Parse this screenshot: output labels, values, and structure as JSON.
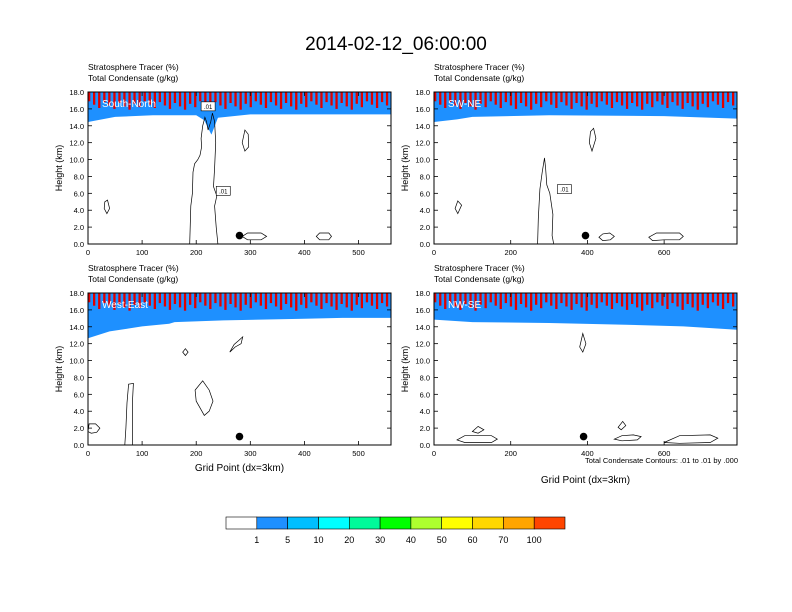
{
  "figure": {
    "title": "2014-02-12_06:00:00",
    "condensate_note": "Total Condensate Contours: .01 to .01 by .000"
  },
  "colors": {
    "tracer_fill": [
      "#ffffff",
      "#1e90ff",
      "#00bfff",
      "#00ffff",
      "#00fa9a",
      "#00ff00",
      "#adff2f",
      "#ffff00",
      "#ffd700",
      "#ffa500",
      "#ff4500",
      "#ff0000"
    ],
    "stripe_dark": "#e00000",
    "contour": "#000000"
  },
  "colorbar": {
    "labels": [
      "1",
      "5",
      "10",
      "20",
      "30",
      "40",
      "50",
      "60",
      "70",
      "100"
    ]
  },
  "chart_data": [
    {
      "type": "contour",
      "panel": "South-North",
      "line1": "Stratosphere Tracer   (%)",
      "line2": "Total Condensate   (g/kg)",
      "ylabel": "Height (km)",
      "xlabel": "",
      "xlim": [
        0,
        560
      ],
      "ylim": [
        0,
        18
      ],
      "xticks": [
        "0",
        "100",
        "200",
        "300",
        "400",
        "500"
      ],
      "xtick_values": [
        0,
        100,
        200,
        300,
        400,
        500
      ],
      "yticks": [
        "0.0",
        "2.0",
        "4.0",
        "6.0",
        "8.0",
        "10.0",
        "12.0",
        "14.0",
        "16.0",
        "18.0"
      ],
      "tracer_top_km": [
        [
          0,
          15.0
        ],
        [
          50,
          15.6
        ],
        [
          120,
          15.8
        ],
        [
          200,
          15.8
        ],
        [
          215,
          15.2
        ],
        [
          228,
          13.5
        ],
        [
          240,
          15.5
        ],
        [
          300,
          15.9
        ],
        [
          420,
          15.9
        ],
        [
          560,
          15.9
        ]
      ],
      "marker": {
        "x": 280,
        "y_km": 1.0
      },
      "contour_labels": [
        {
          "text": ".01",
          "x": 222,
          "y_km": 16.3
        },
        {
          "text": ".01",
          "x": 250,
          "y_km": 6.3
        }
      ]
    },
    {
      "type": "contour",
      "panel": "SW-NE",
      "line1": "Stratosphere Tracer   (%)",
      "line2": "Total Condensate   (g/kg)",
      "ylabel": "Height (km)",
      "xlabel": "",
      "xlim": [
        0,
        790
      ],
      "ylim": [
        0,
        18
      ],
      "xticks": [
        "0",
        "200",
        "400",
        "600"
      ],
      "xtick_values": [
        0,
        200,
        400,
        600
      ],
      "yticks": [
        "0.0",
        "2.0",
        "4.0",
        "6.0",
        "8.0",
        "10.0",
        "12.0",
        "14.0",
        "16.0",
        "18.0"
      ],
      "tracer_top_km": [
        [
          0,
          15.0
        ],
        [
          60,
          15.3
        ],
        [
          100,
          15.6
        ],
        [
          300,
          15.8
        ],
        [
          600,
          15.7
        ],
        [
          790,
          15.4
        ]
      ],
      "marker": {
        "x": 395,
        "y_km": 1.0
      },
      "contour_labels": [
        {
          "text": ".01",
          "x": 340,
          "y_km": 6.5
        }
      ]
    },
    {
      "type": "contour",
      "panel": "West-East",
      "line1": "Stratosphere Tracer   (%)",
      "line2": "Total Condensate   (g/kg)",
      "ylabel": "Height (km)",
      "xlabel": "Grid Point (dx=3km)",
      "xlim": [
        0,
        560
      ],
      "ylim": [
        0,
        18
      ],
      "xticks": [
        "0",
        "100",
        "200",
        "300",
        "400",
        "500"
      ],
      "xtick_values": [
        0,
        100,
        200,
        300,
        400,
        500
      ],
      "yticks": [
        "0.0",
        "2.0",
        "4.0",
        "6.0",
        "8.0",
        "10.0",
        "12.0",
        "14.0",
        "16.0",
        "18.0"
      ],
      "tracer_top_km": [
        [
          0,
          13.2
        ],
        [
          40,
          14.0
        ],
        [
          100,
          14.6
        ],
        [
          150,
          14.9
        ],
        [
          160,
          15.1
        ],
        [
          250,
          15.3
        ],
        [
          400,
          15.5
        ],
        [
          470,
          15.6
        ],
        [
          560,
          15.6
        ]
      ],
      "marker": {
        "x": 280,
        "y_km": 1.0
      },
      "contour_labels": []
    },
    {
      "type": "contour",
      "panel": "NW-SE",
      "line1": "Stratosphere Tracer   (%)",
      "line2": "Total Condensate   (g/kg)",
      "ylabel": "Height (km)",
      "xlabel": "Grid Point (dx=3km)",
      "xlim": [
        0,
        790
      ],
      "ylim": [
        0,
        18
      ],
      "xticks": [
        "0",
        "200",
        "400",
        "600"
      ],
      "xtick_values": [
        0,
        200,
        400,
        600
      ],
      "yticks": [
        "0.0",
        "2.0",
        "4.0",
        "6.0",
        "8.0",
        "10.0",
        "12.0",
        "14.0",
        "16.0",
        "18.0"
      ],
      "tracer_top_km": [
        [
          0,
          15.4
        ],
        [
          100,
          15.1
        ],
        [
          300,
          15.0
        ],
        [
          500,
          14.8
        ],
        [
          650,
          14.6
        ],
        [
          790,
          14.2
        ]
      ],
      "marker": {
        "x": 390,
        "y_km": 1.0
      },
      "contour_labels": []
    }
  ]
}
